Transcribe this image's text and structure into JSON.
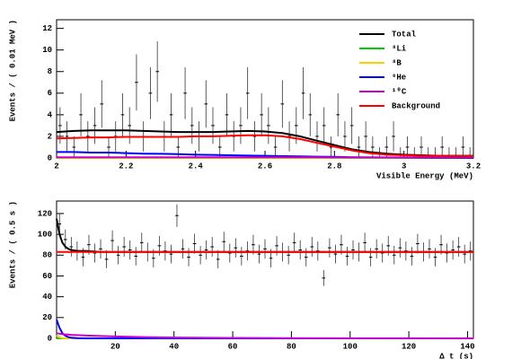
{
  "chart_data": [
    {
      "type": "line",
      "y_label": "Events / ( 0.01 MeV )",
      "x_label": "Visible Energy (MeV)",
      "xlim": [
        2,
        3.2
      ],
      "ylim": [
        0,
        12.8
      ],
      "xticks": [
        2,
        2.2,
        2.4,
        2.6,
        2.8,
        3,
        3.2
      ],
      "yticks": [
        0,
        2,
        4,
        6,
        8,
        10,
        12
      ],
      "legend": "upper right",
      "x": [
        2,
        2.05,
        2.1,
        2.15,
        2.2,
        2.25,
        2.3,
        2.35,
        2.4,
        2.45,
        2.5,
        2.55,
        2.6,
        2.65,
        2.7,
        2.75,
        2.8,
        2.85,
        2.9,
        2.95,
        3,
        3.05,
        3.1,
        3.15,
        3.2
      ],
      "series": [
        {
          "name": "Total",
          "color": "#000000",
          "values": [
            2.4,
            2.5,
            2.55,
            2.55,
            2.55,
            2.5,
            2.45,
            2.4,
            2.4,
            2.4,
            2.45,
            2.5,
            2.45,
            2.3,
            2.0,
            1.6,
            1.2,
            0.8,
            0.55,
            0.4,
            0.3,
            0.25,
            0.2,
            0.2,
            0.2
          ]
        },
        {
          "name": "⁸Li",
          "color": "#00cc00",
          "values": [
            0,
            0,
            0,
            0,
            0,
            0,
            0,
            0,
            0,
            0,
            0,
            0,
            0,
            0,
            0,
            0,
            0,
            0,
            0,
            0,
            0,
            0,
            0,
            0,
            0
          ]
        },
        {
          "name": "⁸B",
          "color": "#ffcc00",
          "values": [
            0.01,
            0.01,
            0.01,
            0.01,
            0.01,
            0.01,
            0.01,
            0.01,
            0.01,
            0.01,
            0.01,
            0.01,
            0.01,
            0.01,
            0.01,
            0.01,
            0.01,
            0.01,
            0.01,
            0.01,
            0.01,
            0.01,
            0.01,
            0.01,
            0.01
          ]
        },
        {
          "name": "⁶He",
          "color": "#0000ff",
          "values": [
            0.55,
            0.55,
            0.5,
            0.5,
            0.45,
            0.4,
            0.38,
            0.35,
            0.3,
            0.28,
            0.25,
            0.22,
            0.2,
            0.17,
            0.15,
            0.12,
            0.1,
            0.07,
            0.05,
            0.04,
            0.03,
            0.02,
            0.01,
            0.01,
            0
          ]
        },
        {
          "name": "¹⁰C",
          "color": "#cc00cc",
          "values": [
            0.06,
            0.06,
            0.06,
            0.06,
            0.06,
            0.06,
            0.06,
            0.06,
            0.06,
            0.06,
            0.06,
            0.06,
            0.06,
            0.06,
            0.06,
            0.06,
            0.05,
            0.05,
            0.05,
            0.05,
            0.05,
            0.05,
            0.05,
            0.05,
            0.05
          ]
        },
        {
          "name": "Background",
          "color": "#ff0000",
          "values": [
            1.8,
            1.85,
            1.9,
            1.9,
            1.95,
            1.95,
            1.95,
            1.95,
            2.0,
            2.0,
            2.05,
            2.1,
            2.1,
            2.0,
            1.75,
            1.4,
            1.05,
            0.7,
            0.45,
            0.3,
            0.25,
            0.2,
            0.18,
            0.17,
            0.17
          ]
        }
      ],
      "points": {
        "x": [
          2.01,
          2.03,
          2.05,
          2.07,
          2.09,
          2.11,
          2.13,
          2.15,
          2.17,
          2.19,
          2.21,
          2.23,
          2.25,
          2.27,
          2.29,
          2.31,
          2.33,
          2.35,
          2.37,
          2.39,
          2.41,
          2.43,
          2.45,
          2.47,
          2.49,
          2.51,
          2.53,
          2.55,
          2.57,
          2.59,
          2.61,
          2.63,
          2.65,
          2.67,
          2.69,
          2.71,
          2.73,
          2.75,
          2.77,
          2.79,
          2.81,
          2.83,
          2.85,
          2.87,
          2.89,
          2.91,
          2.93,
          2.95,
          2.97,
          2.99,
          3.01,
          3.03,
          3.05,
          3.07,
          3.09,
          3.11,
          3.13,
          3.15,
          3.17,
          3.19
        ],
        "values": [
          3,
          2,
          1,
          4,
          2,
          3,
          5,
          1,
          2,
          4,
          3,
          7,
          2,
          6,
          8,
          2,
          4,
          1,
          6,
          3,
          2,
          5,
          3,
          1,
          4,
          2,
          3,
          6,
          2,
          4,
          3,
          1,
          5,
          2,
          3,
          6,
          4,
          2,
          3,
          1,
          4,
          2,
          3,
          1,
          2,
          1,
          0,
          1,
          2,
          0,
          1,
          0,
          1,
          0,
          0,
          1,
          0,
          0,
          1,
          0
        ],
        "errors": [
          1.7,
          1.4,
          1,
          2,
          1.4,
          1.7,
          2.2,
          1,
          1.4,
          2,
          1.7,
          2.6,
          1.4,
          2.4,
          2.8,
          1.4,
          2,
          1,
          2.4,
          1.7,
          1.4,
          2.2,
          1.7,
          1,
          2,
          1.4,
          1.7,
          2.4,
          1.4,
          2,
          1.7,
          1,
          2.2,
          1.4,
          1.7,
          2.4,
          2,
          1.4,
          1.7,
          1,
          2,
          1.4,
          1.7,
          1,
          1.4,
          1,
          1,
          1,
          1.4,
          1,
          1,
          1,
          1,
          1,
          1,
          1,
          1,
          1,
          1,
          1
        ]
      }
    },
    {
      "type": "line",
      "y_label": "Events / ( 0.5 s )",
      "x_label": "Δ t (s)",
      "xlim": [
        0,
        142
      ],
      "ylim": [
        0,
        132
      ],
      "xticks": [
        20,
        40,
        60,
        80,
        100,
        120,
        140
      ],
      "yticks": [
        0,
        20,
        40,
        60,
        80,
        100,
        120
      ],
      "x": [
        0,
        1,
        2,
        3,
        4,
        5,
        7,
        10,
        15,
        20,
        30,
        40,
        60,
        80,
        100,
        120,
        142
      ],
      "series": [
        {
          "color": "#000000",
          "values": [
            115,
            100,
            92,
            88,
            86,
            85,
            84,
            84,
            83,
            83,
            83,
            83,
            83,
            83,
            83,
            83,
            83
          ]
        },
        {
          "color": "#00cc00",
          "values": [
            0,
            0,
            0,
            0,
            0,
            0,
            0,
            0,
            0,
            0,
            0,
            0,
            0,
            0,
            0,
            0,
            0
          ]
        },
        {
          "color": "#ffcc00",
          "values": [
            3,
            1,
            0.3,
            0.1,
            0,
            0,
            0,
            0,
            0,
            0,
            0,
            0,
            0,
            0,
            0,
            0,
            0
          ]
        },
        {
          "color": "#0000ff",
          "values": [
            18,
            10,
            5,
            2.5,
            1.2,
            0.6,
            0.2,
            0,
            0,
            0,
            0,
            0,
            0,
            0,
            0,
            0,
            0
          ]
        },
        {
          "color": "#cc00cc",
          "values": [
            5,
            4.5,
            4,
            3.8,
            3.6,
            3.4,
            3.1,
            2.7,
            2.2,
            1.8,
            1.2,
            0.8,
            0.4,
            0.2,
            0.1,
            0.05,
            0
          ]
        },
        {
          "color": "#ff0000",
          "values": [
            83,
            83,
            83,
            83,
            83,
            83,
            83,
            83,
            83,
            83,
            83,
            83,
            83,
            83,
            83,
            83,
            83
          ]
        }
      ],
      "points": {
        "x": [
          1,
          3,
          5,
          7,
          9,
          11,
          13,
          15,
          17,
          19,
          21,
          23,
          25,
          27,
          29,
          31,
          33,
          35,
          37,
          39,
          41,
          43,
          45,
          47,
          49,
          51,
          53,
          55,
          57,
          59,
          61,
          63,
          65,
          67,
          69,
          71,
          73,
          75,
          77,
          79,
          81,
          83,
          85,
          87,
          89,
          91,
          93,
          95,
          97,
          99,
          101,
          103,
          105,
          107,
          109,
          111,
          113,
          115,
          117,
          119,
          121,
          123,
          125,
          127,
          129,
          131,
          133,
          135,
          137,
          139,
          141
        ],
        "values": [
          110,
          95,
          88,
          84,
          78,
          90,
          82,
          86,
          76,
          94,
          80,
          88,
          85,
          79,
          92,
          83,
          77,
          89,
          84,
          81,
          118,
          86,
          78,
          91,
          80,
          85,
          88,
          76,
          93,
          82,
          87,
          79,
          84,
          90,
          81,
          86,
          77,
          89,
          83,
          80,
          92,
          85,
          78,
          88,
          84,
          58,
          87,
          81,
          90,
          79,
          85,
          83,
          92,
          78,
          86,
          82,
          89,
          80,
          87,
          84,
          79,
          91,
          83,
          86,
          78,
          90,
          82,
          85,
          88,
          81,
          84
        ],
        "errors": [
          10.5,
          9.7,
          9.4,
          9.2,
          8.8,
          9.5,
          9.1,
          9.3,
          8.7,
          9.7,
          8.9,
          9.4,
          9.2,
          8.9,
          9.6,
          9.1,
          8.8,
          9.4,
          9.2,
          9,
          10.9,
          9.3,
          8.8,
          9.5,
          8.9,
          9.2,
          9.4,
          8.7,
          9.6,
          9.1,
          9.3,
          8.9,
          9.2,
          9.5,
          9,
          9.3,
          8.8,
          9.4,
          9.1,
          8.9,
          9.6,
          9.2,
          8.8,
          9.4,
          9.2,
          7.6,
          9.3,
          9,
          9.5,
          8.9,
          9.2,
          9.1,
          9.6,
          8.8,
          9.3,
          9.1,
          9.4,
          8.9,
          9.3,
          9.2,
          8.9,
          9.5,
          9.1,
          9.3,
          8.8,
          9.5,
          9.1,
          9.2,
          9.4,
          9,
          9.2
        ]
      }
    }
  ]
}
